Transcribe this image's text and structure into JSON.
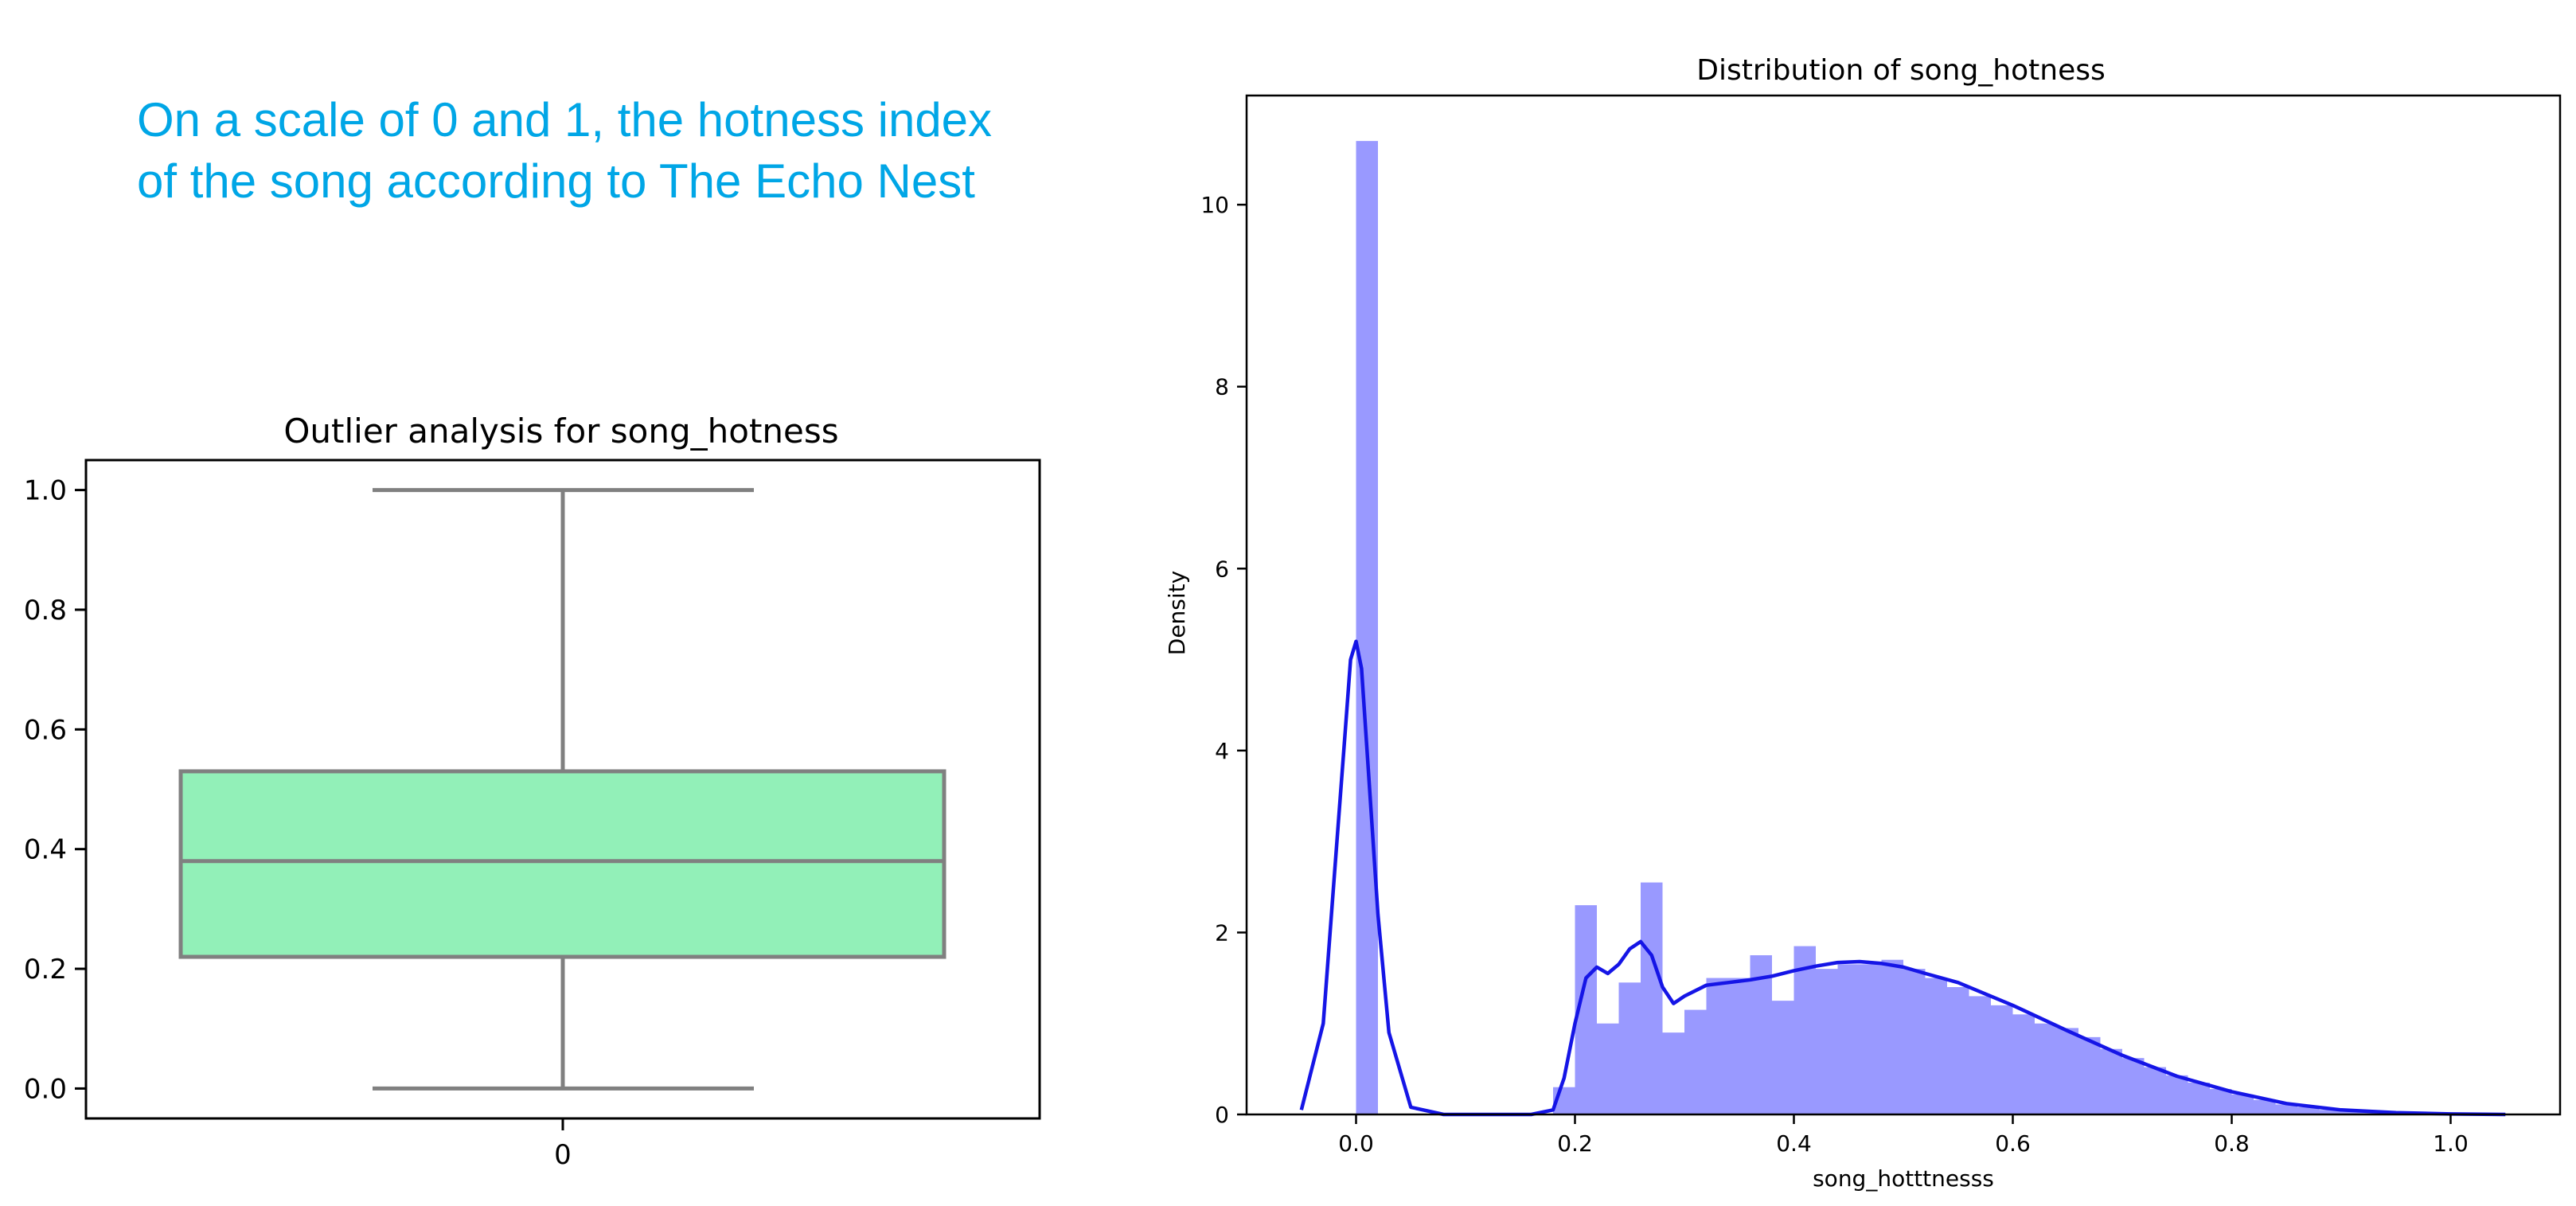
{
  "annotation": {
    "text": "On a scale of 0 and 1, the hotness index of the song according to The Echo Nest"
  },
  "colors": {
    "annotation": "#00a6e6",
    "box_fill": "#92f0b8",
    "box_edge": "#808080",
    "hist_fill": "#9999ff",
    "kde_line": "#1515e6"
  },
  "chart_data": [
    {
      "type": "box",
      "title": "Outlier analysis for song_hotness",
      "xlabel": "",
      "ylabel": "",
      "categories": [
        "0"
      ],
      "whisker_low": 0.0,
      "q1": 0.22,
      "median": 0.38,
      "q3": 0.53,
      "whisker_high": 1.0,
      "ylim": [
        -0.05,
        1.05
      ],
      "yticks": [
        0.0,
        0.2,
        0.4,
        0.6,
        0.8,
        1.0
      ],
      "ytick_labels": [
        "0.0",
        "0.2",
        "0.4",
        "0.6",
        "0.8",
        "1.0"
      ],
      "grid": false
    },
    {
      "type": "histogram",
      "title": "Distribution of song_hotness",
      "xlabel": "song_hotttnesss",
      "ylabel": "Density",
      "xlim": [
        -0.1,
        1.1
      ],
      "ylim": [
        0,
        11.2
      ],
      "xticks": [
        0.0,
        0.2,
        0.4,
        0.6,
        0.8,
        1.0
      ],
      "xtick_labels": [
        "0.0",
        "0.2",
        "0.4",
        "0.6",
        "0.8",
        "1.0"
      ],
      "yticks": [
        0,
        2,
        4,
        6,
        8,
        10
      ],
      "ytick_labels": [
        "0",
        "2",
        "4",
        "6",
        "8",
        "10"
      ],
      "bin_width": 0.02,
      "bin_starts": [
        0.0,
        0.18,
        0.2,
        0.22,
        0.24,
        0.26,
        0.28,
        0.3,
        0.32,
        0.34,
        0.36,
        0.38,
        0.4,
        0.42,
        0.44,
        0.46,
        0.48,
        0.5,
        0.52,
        0.54,
        0.56,
        0.58,
        0.6,
        0.62,
        0.64,
        0.66,
        0.68,
        0.7,
        0.72,
        0.74,
        0.76,
        0.78,
        0.8,
        0.82,
        0.84,
        0.86,
        0.88,
        0.9,
        0.92,
        0.94,
        0.96,
        0.98,
        1.0
      ],
      "densities": [
        10.7,
        0.3,
        2.3,
        1.0,
        1.45,
        2.55,
        0.9,
        1.15,
        1.5,
        1.5,
        1.75,
        1.25,
        1.85,
        1.6,
        1.65,
        1.65,
        1.7,
        1.6,
        1.5,
        1.4,
        1.3,
        1.2,
        1.1,
        1.0,
        0.95,
        0.85,
        0.72,
        0.62,
        0.52,
        0.43,
        0.35,
        0.28,
        0.22,
        0.16,
        0.11,
        0.08,
        0.05,
        0.03,
        0.02,
        0.015,
        0.01,
        0.006,
        0.003
      ],
      "kde": {
        "x": [
          -0.05,
          -0.03,
          -0.02,
          -0.01,
          -0.005,
          0.0,
          0.005,
          0.01,
          0.02,
          0.03,
          0.05,
          0.08,
          0.12,
          0.16,
          0.18,
          0.19,
          0.2,
          0.21,
          0.22,
          0.23,
          0.24,
          0.25,
          0.26,
          0.27,
          0.28,
          0.29,
          0.3,
          0.32,
          0.34,
          0.36,
          0.38,
          0.4,
          0.42,
          0.44,
          0.46,
          0.48,
          0.5,
          0.52,
          0.55,
          0.6,
          0.65,
          0.7,
          0.75,
          0.8,
          0.85,
          0.9,
          0.95,
          1.0,
          1.05
        ],
        "y": [
          0.05,
          1.0,
          2.6,
          4.2,
          5.0,
          5.2,
          4.9,
          4.0,
          2.2,
          0.9,
          0.08,
          0.0,
          0.0,
          0.0,
          0.05,
          0.4,
          1.0,
          1.5,
          1.62,
          1.55,
          1.65,
          1.82,
          1.9,
          1.75,
          1.4,
          1.22,
          1.3,
          1.42,
          1.45,
          1.48,
          1.52,
          1.58,
          1.63,
          1.67,
          1.68,
          1.66,
          1.62,
          1.55,
          1.45,
          1.2,
          0.92,
          0.65,
          0.42,
          0.25,
          0.12,
          0.05,
          0.02,
          0.005,
          0.0
        ]
      },
      "grid": false
    }
  ]
}
